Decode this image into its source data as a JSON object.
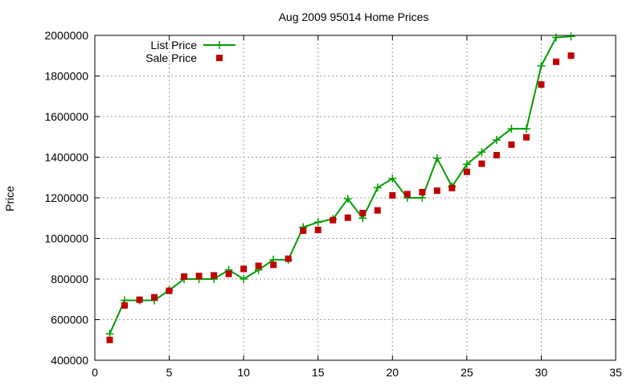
{
  "chart_data": {
    "type": "line",
    "title": "Aug 2009 95014 Home Prices",
    "xlabel": "",
    "ylabel": "Price",
    "xlim": [
      0,
      35
    ],
    "ylim": [
      400000,
      2000000
    ],
    "x_ticks": [
      0,
      5,
      10,
      15,
      20,
      25,
      30,
      35
    ],
    "y_ticks": [
      400000,
      600000,
      800000,
      1000000,
      1200000,
      1400000,
      1600000,
      1800000,
      2000000
    ],
    "grid": true,
    "legend_position": "top-left",
    "series": [
      {
        "name": "List Price",
        "style": "line-with-plus-markers",
        "color": "#009e00",
        "x": [
          1,
          2,
          3,
          4,
          5,
          6,
          7,
          8,
          9,
          10,
          11,
          12,
          13,
          14,
          15,
          16,
          17,
          18,
          19,
          20,
          21,
          22,
          23,
          24,
          25,
          26,
          27,
          28,
          29,
          30,
          31,
          32
        ],
        "values": [
          530000,
          695000,
          695000,
          695000,
          745000,
          800000,
          800000,
          800000,
          845000,
          800000,
          845000,
          895000,
          895000,
          1055000,
          1080000,
          1095000,
          1195000,
          1100000,
          1250000,
          1295000,
          1200000,
          1200000,
          1395000,
          1255000,
          1365000,
          1425000,
          1485000,
          1540000,
          1540000,
          1850000,
          1990000,
          1995000
        ]
      },
      {
        "name": "Sale Price",
        "style": "square-markers",
        "color": "#c00000",
        "x": [
          1,
          2,
          3,
          4,
          5,
          6,
          7,
          8,
          9,
          10,
          11,
          12,
          13,
          14,
          15,
          16,
          17,
          18,
          19,
          20,
          21,
          22,
          23,
          24,
          25,
          26,
          27,
          28,
          29,
          30,
          31,
          32
        ],
        "values": [
          500000,
          670000,
          698000,
          710000,
          742000,
          812000,
          815000,
          818000,
          825000,
          850000,
          865000,
          870000,
          900000,
          1038000,
          1042000,
          1090000,
          1102000,
          1125000,
          1138000,
          1212000,
          1218000,
          1228000,
          1235000,
          1248000,
          1328000,
          1368000,
          1410000,
          1462000,
          1498000,
          1758000,
          1870000,
          1900000
        ]
      }
    ]
  },
  "colors": {
    "axis": "#000000",
    "grid": "#a0a0a0",
    "list_price": "#009e00",
    "sale_price": "#c00000"
  }
}
